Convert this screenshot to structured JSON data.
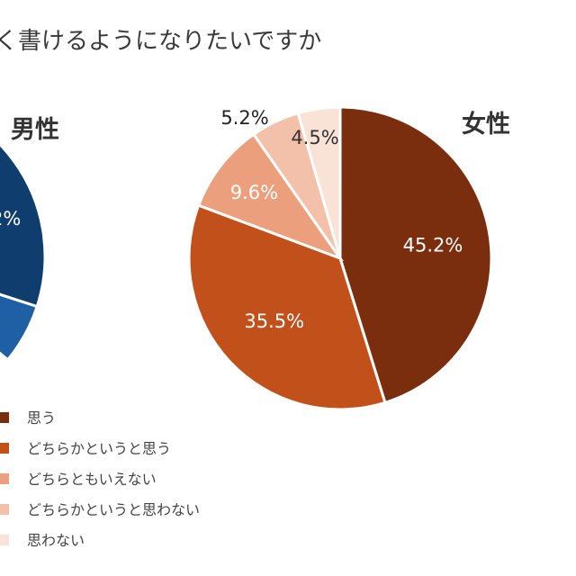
{
  "chart_data": [
    {
      "type": "pie",
      "title": "く書けるようになりたいですか",
      "series_name": "男性",
      "categories": [
        "思う",
        "どちらかというと思う",
        "どちらともいえない",
        "どちらかというと思わない",
        "思わない"
      ],
      "colors": [
        "#0e3d6e",
        "#1f5fa3",
        "#6f9ccf",
        "#a8c4e2",
        "#d6e4f2"
      ],
      "visible_labels": [
        "2%"
      ]
    },
    {
      "type": "pie",
      "series_name": "女性",
      "categories": [
        "思う",
        "どちらかというと思う",
        "どちらともいえない",
        "どちらかというと思わない",
        "思わない"
      ],
      "values": [
        45.2,
        35.5,
        9.6,
        5.2,
        4.5
      ],
      "labels": [
        "45.2%",
        "35.5%",
        "9.6%",
        "5.2%",
        "4.5%"
      ],
      "colors": [
        "#7a2e0e",
        "#c2501b",
        "#ec9f7c",
        "#f3c1aa",
        "#f9e2d6"
      ]
    }
  ],
  "legend": {
    "placement": "bottom-left",
    "items": [
      "思う",
      "どちらかというと思う",
      "どちらともいえない",
      "どちらかというと思わない",
      "思わない"
    ],
    "colors": [
      "#7a2e0e",
      "#c2501b",
      "#ec9f7c",
      "#f3c1aa",
      "#f9e2d6"
    ]
  }
}
